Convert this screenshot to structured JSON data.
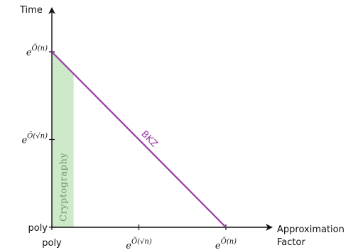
{
  "chart_data": {
    "type": "line",
    "title": "",
    "ylabel": "Time",
    "xlabel_lines": [
      "Approximation",
      "Factor"
    ],
    "x_ticks": [
      {
        "pos": 0,
        "base": "poly",
        "exp": ""
      },
      {
        "pos": 1,
        "base": "e",
        "exp": "Õ(√n)"
      },
      {
        "pos": 2,
        "base": "e",
        "exp": "Õ(n)"
      }
    ],
    "y_ticks": [
      {
        "pos": 0,
        "base": "poly",
        "exp": ""
      },
      {
        "pos": 1,
        "base": "e",
        "exp": "Õ(√n)"
      },
      {
        "pos": 2,
        "base": "e",
        "exp": "Õ(n)"
      }
    ],
    "xlim": [
      0,
      2
    ],
    "ylim": [
      0,
      2
    ],
    "series": [
      {
        "name": "BKZ",
        "x": [
          0,
          2
        ],
        "y": [
          2,
          0
        ],
        "color": "#9b3aa6"
      }
    ],
    "shaded_region": {
      "label": "Cryptography",
      "x": [
        0,
        0.25
      ],
      "color": "#cde9c9",
      "text_color": "#6f9a6c"
    }
  }
}
